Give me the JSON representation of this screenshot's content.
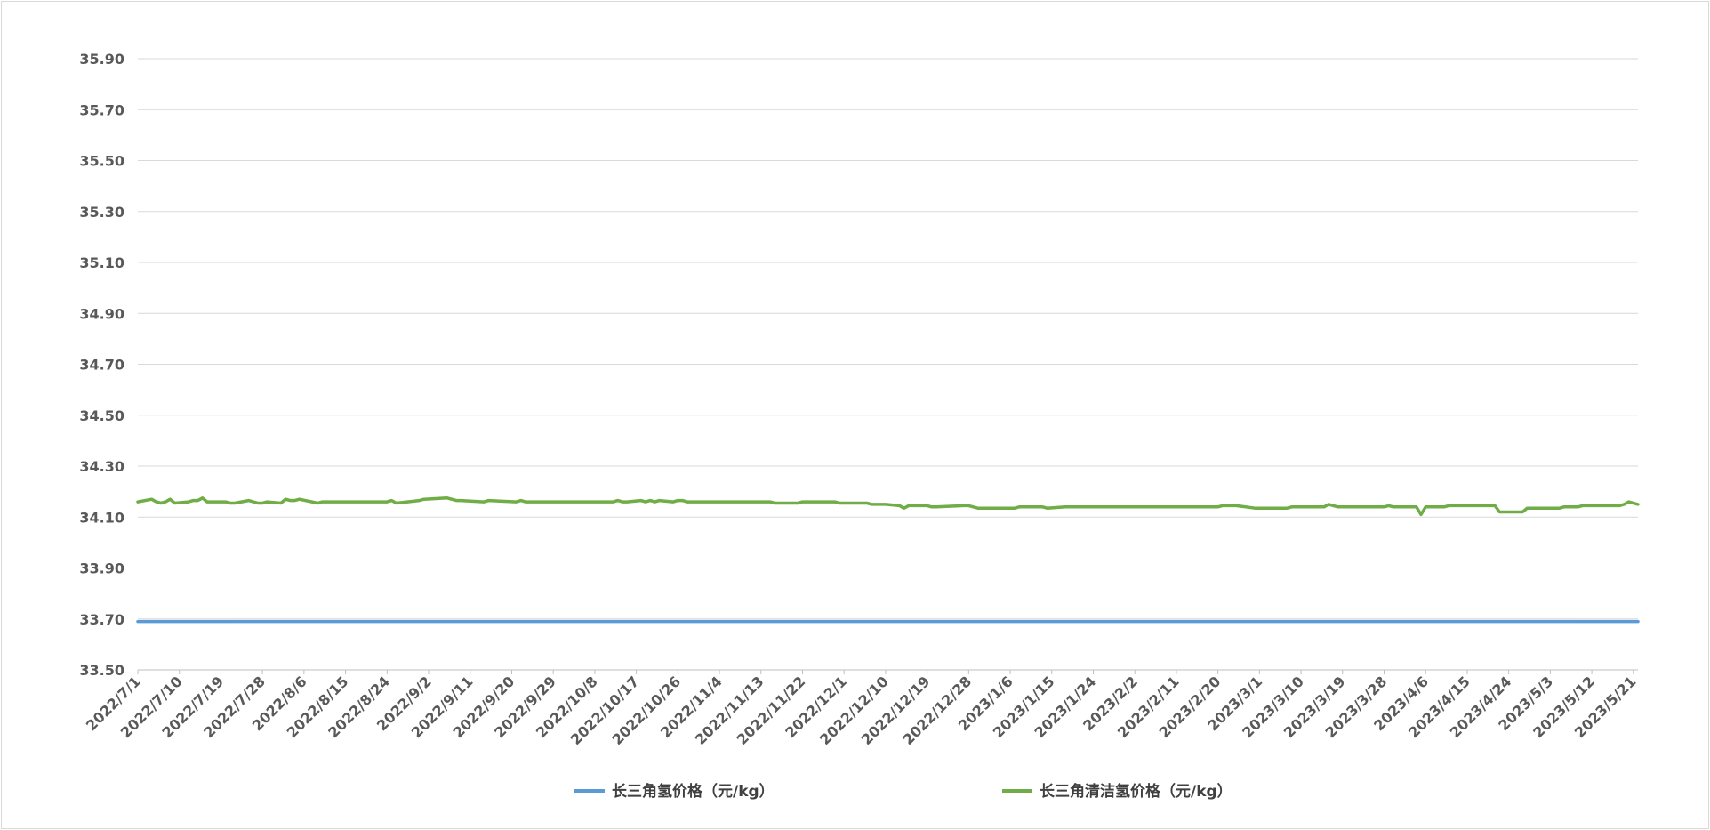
{
  "chart_data": {
    "type": "line",
    "title": "",
    "xlabel": "",
    "ylabel": "",
    "ylim": [
      33.5,
      35.9
    ],
    "yticks": [
      "33.50",
      "33.70",
      "33.90",
      "34.10",
      "34.30",
      "34.50",
      "34.70",
      "34.90",
      "35.10",
      "35.30",
      "35.50",
      "35.70",
      "35.90"
    ],
    "grid": true,
    "legend_position": "bottom",
    "x_start": "2022-07-01",
    "x_end": "2023-05-22",
    "x_tick_labels": [
      "2022/7/1",
      "2022/7/10",
      "2022/7/19",
      "2022/7/28",
      "2022/8/6",
      "2022/8/15",
      "2022/8/24",
      "2022/9/2",
      "2022/9/11",
      "2022/9/20",
      "2022/9/29",
      "2022/10/8",
      "2022/10/17",
      "2022/10/26",
      "2022/11/4",
      "2022/11/13",
      "2022/11/22",
      "2022/12/1",
      "2022/12/10",
      "2022/12/19",
      "2022/12/28",
      "2023/1/6",
      "2023/1/15",
      "2023/1/24",
      "2023/2/2",
      "2023/2/11",
      "2023/2/20",
      "2023/3/1",
      "2023/3/10",
      "2023/3/19",
      "2023/3/28",
      "2023/4/6",
      "2023/4/15",
      "2023/4/24",
      "2023/5/3",
      "2023/5/12",
      "2023/5/21"
    ],
    "series": [
      {
        "name": "长三角氢价格（元/kg）",
        "color": "#5b9bd5",
        "x": [
          "2022-07-01",
          "2023-05-22"
        ],
        "values": [
          33.69,
          33.69
        ]
      },
      {
        "name": "长三角清洁氢价格（元/kg）",
        "color": "#70ad47",
        "x": [
          "2022-07-01",
          "2022-07-04",
          "2022-07-05",
          "2022-07-06",
          "2022-07-07",
          "2022-07-08",
          "2022-07-09",
          "2022-07-12",
          "2022-07-13",
          "2022-07-14",
          "2022-07-15",
          "2022-07-16",
          "2022-07-20",
          "2022-07-21",
          "2022-07-22",
          "2022-07-25",
          "2022-07-27",
          "2022-07-28",
          "2022-07-29",
          "2022-08-01",
          "2022-08-02",
          "2022-08-03",
          "2022-08-04",
          "2022-08-05",
          "2022-08-09",
          "2022-08-10",
          "2022-08-24",
          "2022-08-25",
          "2022-08-26",
          "2022-08-31",
          "2022-09-01",
          "2022-09-06",
          "2022-09-07",
          "2022-09-08",
          "2022-09-09",
          "2022-09-14",
          "2022-09-15",
          "2022-09-21",
          "2022-09-22",
          "2022-09-23",
          "2022-10-12",
          "2022-10-13",
          "2022-10-14",
          "2022-10-15",
          "2022-10-18",
          "2022-10-19",
          "2022-10-20",
          "2022-10-21",
          "2022-10-22",
          "2022-10-25",
          "2022-10-26",
          "2022-10-27",
          "2022-10-28",
          "2022-11-15",
          "2022-11-16",
          "2022-11-18",
          "2022-11-21",
          "2022-11-22",
          "2022-11-29",
          "2022-11-30",
          "2022-12-06",
          "2022-12-07",
          "2022-12-10",
          "2022-12-13",
          "2022-12-14",
          "2022-12-15",
          "2022-12-19",
          "2022-12-20",
          "2022-12-21",
          "2022-12-27",
          "2022-12-28",
          "2022-12-30",
          "2023-01-07",
          "2023-01-08",
          "2023-01-13",
          "2023-01-14",
          "2023-01-18",
          "2023-02-18",
          "2023-02-20",
          "2023-02-21",
          "2023-02-24",
          "2023-02-28",
          "2023-03-07",
          "2023-03-08",
          "2023-03-15",
          "2023-03-16",
          "2023-03-17",
          "2023-03-18",
          "2023-03-28",
          "2023-03-29",
          "2023-03-30",
          "2023-04-04",
          "2023-04-05",
          "2023-04-06",
          "2023-04-07",
          "2023-04-10",
          "2023-04-11",
          "2023-04-21",
          "2023-04-22",
          "2023-04-27",
          "2023-04-28",
          "2023-05-05",
          "2023-05-06",
          "2023-05-09",
          "2023-05-10",
          "2023-05-18",
          "2023-05-19",
          "2023-05-20",
          "2023-05-22"
        ],
        "values": [
          34.16,
          34.17,
          34.16,
          34.155,
          34.16,
          34.17,
          34.155,
          34.16,
          34.165,
          34.165,
          34.175,
          34.16,
          34.16,
          34.155,
          34.155,
          34.165,
          34.155,
          34.155,
          34.16,
          34.155,
          34.17,
          34.165,
          34.165,
          34.17,
          34.155,
          34.16,
          34.16,
          34.165,
          34.155,
          34.165,
          34.17,
          34.175,
          34.17,
          34.165,
          34.165,
          34.16,
          34.165,
          34.16,
          34.165,
          34.16,
          34.16,
          34.165,
          34.16,
          34.16,
          34.165,
          34.16,
          34.165,
          34.16,
          34.165,
          34.16,
          34.165,
          34.165,
          34.16,
          34.16,
          34.155,
          34.155,
          34.155,
          34.16,
          34.16,
          34.155,
          34.155,
          34.15,
          34.15,
          34.145,
          34.135,
          34.145,
          34.145,
          34.14,
          34.14,
          34.145,
          34.145,
          34.135,
          34.135,
          34.14,
          34.14,
          34.135,
          34.14,
          34.14,
          34.14,
          34.145,
          34.145,
          34.135,
          34.135,
          34.14,
          34.14,
          34.15,
          34.145,
          34.14,
          34.14,
          34.145,
          34.14,
          34.14,
          34.11,
          34.14,
          34.14,
          34.14,
          34.145,
          34.145,
          34.12,
          34.12,
          34.135,
          34.135,
          34.14,
          34.14,
          34.145,
          34.145,
          34.15,
          34.16,
          34.15
        ]
      }
    ]
  }
}
